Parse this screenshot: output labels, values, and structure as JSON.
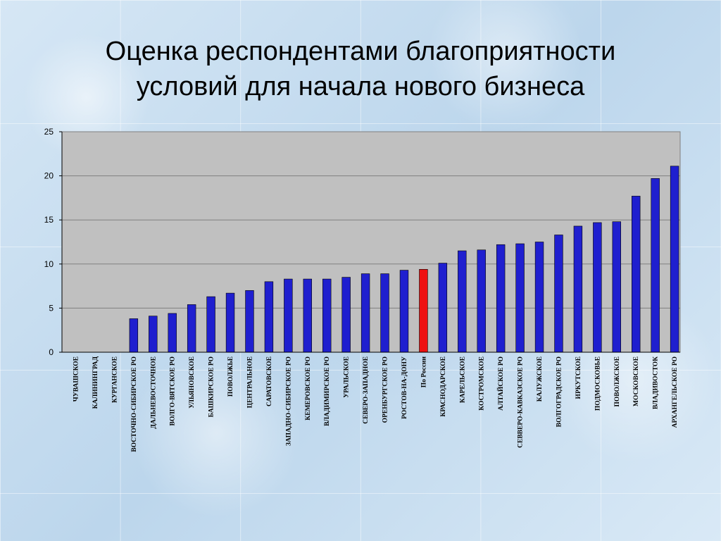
{
  "title": {
    "line1": "Оценка респондентами благоприятности",
    "line2": "условий для начала нового бизнеса"
  },
  "chart_data": {
    "type": "bar",
    "title": "Оценка респондентами благоприятности условий для начала нового бизнеса",
    "ylim": [
      0,
      25
    ],
    "yticks": [
      0,
      5,
      10,
      15,
      20,
      25
    ],
    "grid": true,
    "legend": "none",
    "plot_color": "#c0c0c0",
    "bar_color": "#1f1fcf",
    "highlight_color": "#ee1111",
    "highlight_category": "По России",
    "categories": [
      "ЧУВАШСКОЕ",
      "КАЛИНИНГРАД",
      "КУРГАНСКОЕ",
      "ВОСТОЧНО-СИБИРСКОЕ РО",
      "ДАЛЬНЕВОСТОЧНОЕ",
      "ВОЛГО-ВЯТСКОЕ РО",
      "УЛЬЯНОВСКОЕ",
      "БАШКИРСКОЕ РО",
      "ПОВОЛЖЬЕ",
      "ЦЕНТРАЛЬНОЕ",
      "САРАТОВСКОЕ",
      "ЗАПАДНО-СИБИРСКОЕ РО",
      "КЕМЕРОВСКОЕ РО",
      "ВЛАДИМИРСКОЕ РО",
      "УРАЛЬСКОЕ",
      "СЕВЕРО-ЗАПАДНОЕ",
      "ОРЕНБУРГСКОЕ РО",
      "РОСТОВ-НА-ДОНУ",
      "По России",
      "КРАСНОДАРСКОЕ",
      "КАРЕЛЬСКОЕ",
      "КОСТРОМСКОЕ",
      "АЛТАЙСКОЕ РО",
      "СЕВВЕРО-КАВКАЗСКОЕ РО",
      "КАЛУЖСКОЕ",
      "ВОЛГОГРАДСКОЕ РО",
      "ИРКУТСКОЕ",
      "ПОДМОСКОВЬЕ",
      "ПОВОЛЖСКОЕ",
      "МОСКОВСКОЕ",
      "ВЛАДИВОСТОК",
      "АРХАНГЕЛЬСКОЕ РО"
    ],
    "values": [
      0,
      0,
      0,
      3.8,
      4.1,
      4.4,
      5.4,
      6.3,
      6.7,
      7.0,
      8.0,
      8.3,
      8.3,
      8.3,
      8.5,
      8.9,
      8.9,
      9.3,
      9.4,
      10.1,
      11.5,
      11.6,
      12.2,
      12.3,
      12.5,
      13.3,
      14.3,
      14.7,
      14.8,
      17.7,
      19.7,
      21.1
    ]
  }
}
